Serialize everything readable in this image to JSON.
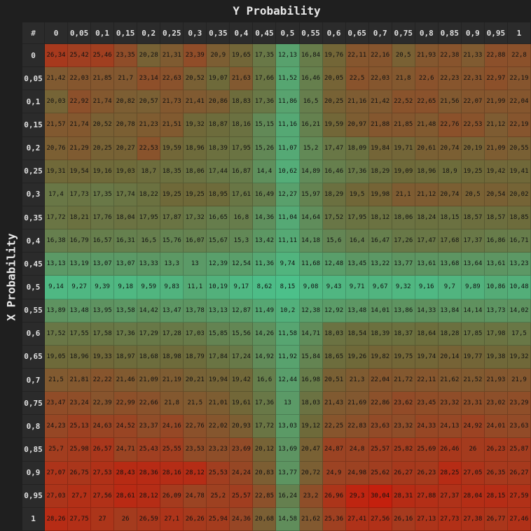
{
  "chart_data": {
    "type": "heatmap",
    "xlabel": "Y Probability",
    "ylabel": "X Probability",
    "corner_label": "#",
    "columns": [
      "0",
      "0,05",
      "0,1",
      "0,15",
      "0,2",
      "0,25",
      "0,3",
      "0,35",
      "0,4",
      "0,45",
      "0,5",
      "0,55",
      "0,6",
      "0,65",
      "0,7",
      "0,75",
      "0,8",
      "0,85",
      "0,9",
      "0,95",
      "1"
    ],
    "rows": [
      "0",
      "0,05",
      "0,1",
      "0,15",
      "0,2",
      "0,25",
      "0,3",
      "0,35",
      "0,4",
      "0,45",
      "0,5",
      "0,55",
      "0,6",
      "0,65",
      "0,7",
      "0,75",
      "0,8",
      "0,85",
      "0,9",
      "0,95",
      "1"
    ],
    "values": [
      [
        "26,34",
        "25,42",
        "25,46",
        "23,35",
        "20,28",
        "21,31",
        "23,39",
        "20,9",
        "19,65",
        "17,35",
        "12,13",
        "16,84",
        "19,76",
        "22,11",
        "22,16",
        "20,5",
        "21,93",
        "22,38",
        "21,33",
        "22,88",
        "22,8"
      ],
      [
        "21,42",
        "22,03",
        "21,85",
        "21,7",
        "23,14",
        "22,63",
        "20,52",
        "19,07",
        "21,63",
        "17,66",
        "11,52",
        "16,46",
        "20,05",
        "22,5",
        "22,03",
        "21,8",
        "22,6",
        "22,23",
        "22,31",
        "22,97",
        "22,19"
      ],
      [
        "20,03",
        "22,92",
        "21,74",
        "20,82",
        "20,57",
        "21,73",
        "21,41",
        "20,86",
        "18,83",
        "17,36",
        "11,86",
        "16,5",
        "20,25",
        "21,16",
        "21,42",
        "22,52",
        "22,65",
        "21,56",
        "22,07",
        "21,99",
        "22,04"
      ],
      [
        "21,57",
        "21,74",
        "20,52",
        "20,78",
        "21,23",
        "21,51",
        "19,32",
        "18,87",
        "18,16",
        "15,15",
        "11,16",
        "16,21",
        "19,59",
        "20,97",
        "21,88",
        "21,85",
        "21,48",
        "22,76",
        "22,53",
        "21,12",
        "22,19"
      ],
      [
        "20,76",
        "21,29",
        "20,25",
        "20,27",
        "22,53",
        "19,59",
        "18,96",
        "18,39",
        "17,95",
        "15,26",
        "11,07",
        "15,2",
        "17,47",
        "18,09",
        "19,84",
        "19,71",
        "20,61",
        "20,74",
        "20,19",
        "21,09",
        "20,55"
      ],
      [
        "19,31",
        "19,54",
        "19,16",
        "19,03",
        "18,7",
        "18,35",
        "18,06",
        "17,44",
        "16,87",
        "14,4",
        "10,62",
        "14,89",
        "16,46",
        "17,36",
        "18,29",
        "19,09",
        "18,96",
        "18,9",
        "19,25",
        "19,42",
        "19,41"
      ],
      [
        "17,4",
        "17,73",
        "17,35",
        "17,74",
        "18,22",
        "19,25",
        "19,25",
        "18,95",
        "17,61",
        "16,49",
        "12,27",
        "15,97",
        "18,29",
        "19,5",
        "19,98",
        "21,1",
        "21,12",
        "20,74",
        "20,5",
        "20,54",
        "20,02"
      ],
      [
        "17,72",
        "18,21",
        "17,76",
        "18,04",
        "17,95",
        "17,87",
        "17,32",
        "16,65",
        "16,8",
        "14,36",
        "11,04",
        "14,64",
        "17,52",
        "17,95",
        "18,12",
        "18,06",
        "18,24",
        "18,15",
        "18,57",
        "18,57",
        "18,85"
      ],
      [
        "16,38",
        "16,79",
        "16,57",
        "16,31",
        "16,5",
        "15,76",
        "16,07",
        "15,67",
        "15,3",
        "13,42",
        "11,11",
        "14,18",
        "15,6",
        "16,4",
        "16,47",
        "17,26",
        "17,47",
        "17,68",
        "17,37",
        "16,86",
        "16,71"
      ],
      [
        "13,13",
        "13,19",
        "13,07",
        "13,07",
        "13,33",
        "13,3",
        "13",
        "12,39",
        "12,54",
        "11,36",
        "9,74",
        "11,68",
        "12,48",
        "13,45",
        "13,22",
        "13,77",
        "13,61",
        "13,68",
        "13,64",
        "13,61",
        "13,23"
      ],
      [
        "9,14",
        "9,27",
        "9,39",
        "9,18",
        "9,59",
        "9,83",
        "11,1",
        "10,19",
        "9,17",
        "8,62",
        "8,15",
        "9,08",
        "9,43",
        "9,71",
        "9,67",
        "9,32",
        "9,16",
        "9,7",
        "9,89",
        "10,86",
        "10,48"
      ],
      [
        "13,89",
        "13,48",
        "13,95",
        "13,58",
        "14,42",
        "13,47",
        "13,78",
        "13,13",
        "12,87",
        "11,49",
        "10,2",
        "12,38",
        "12,92",
        "13,48",
        "14,01",
        "13,86",
        "14,33",
        "13,84",
        "14,14",
        "13,73",
        "14,02"
      ],
      [
        "17,52",
        "17,55",
        "17,58",
        "17,36",
        "17,29",
        "17,28",
        "17,03",
        "15,85",
        "15,56",
        "14,26",
        "11,58",
        "14,71",
        "18,03",
        "18,54",
        "18,39",
        "18,37",
        "18,64",
        "18,28",
        "17,85",
        "17,98",
        "17,5"
      ],
      [
        "19,05",
        "18,96",
        "19,33",
        "18,97",
        "18,68",
        "18,98",
        "18,79",
        "17,84",
        "17,24",
        "14,92",
        "11,92",
        "15,84",
        "18,65",
        "19,26",
        "19,82",
        "19,75",
        "19,74",
        "20,14",
        "19,77",
        "19,38",
        "19,32"
      ],
      [
        "21,5",
        "21,81",
        "22,22",
        "21,46",
        "21,09",
        "21,19",
        "20,21",
        "19,94",
        "19,42",
        "16,6",
        "12,44",
        "16,98",
        "20,51",
        "21,3",
        "22,04",
        "21,72",
        "22,11",
        "21,62",
        "21,52",
        "21,93",
        "21,9"
      ],
      [
        "23,47",
        "23,24",
        "22,39",
        "22,99",
        "22,66",
        "21,8",
        "21,5",
        "21,01",
        "19,61",
        "17,36",
        "13",
        "18,03",
        "21,43",
        "21,69",
        "22,86",
        "23,62",
        "23,45",
        "23,32",
        "23,31",
        "23,02",
        "23,29"
      ],
      [
        "24,23",
        "25,13",
        "24,63",
        "24,52",
        "23,37",
        "24,16",
        "22,76",
        "22,02",
        "20,93",
        "17,72",
        "13,03",
        "19,12",
        "22,25",
        "22,83",
        "23,63",
        "23,32",
        "24,33",
        "24,13",
        "24,92",
        "24,01",
        "23,63"
      ],
      [
        "25,7",
        "25,98",
        "26,57",
        "24,71",
        "25,43",
        "25,55",
        "23,53",
        "23,23",
        "23,69",
        "20,12",
        "13,69",
        "20,47",
        "24,87",
        "24,8",
        "25,57",
        "25,82",
        "25,69",
        "26,46",
        "26",
        "26,23",
        "25,87"
      ],
      [
        "27,07",
        "26,75",
        "27,53",
        "28,43",
        "28,36",
        "28,16",
        "28,12",
        "25,53",
        "24,24",
        "20,83",
        "13,77",
        "20,72",
        "24,9",
        "24,98",
        "25,62",
        "26,27",
        "26,23",
        "28,25",
        "27,05",
        "26,35",
        "26,27"
      ],
      [
        "27,03",
        "27,7",
        "27,56",
        "28,61",
        "28,12",
        "26,09",
        "24,78",
        "25,2",
        "25,57",
        "22,85",
        "16,24",
        "23,2",
        "26,96",
        "29,3",
        "30,04",
        "28,31",
        "27,88",
        "27,37",
        "28,04",
        "28,15",
        "27,59"
      ],
      [
        "28,26",
        "27,75",
        "27",
        "26",
        "26,59",
        "27,1",
        "26,26",
        "25,94",
        "24,36",
        "20,68",
        "14,58",
        "21,62",
        "25,36",
        "27,41",
        "27,56",
        "26,16",
        "27,13",
        "27,73",
        "27,38",
        "26,77",
        "27,46"
      ]
    ],
    "color_low": "#4cc08a",
    "color_mid": "#6e6a3a",
    "color_high": "#c4200e",
    "grid": true
  }
}
